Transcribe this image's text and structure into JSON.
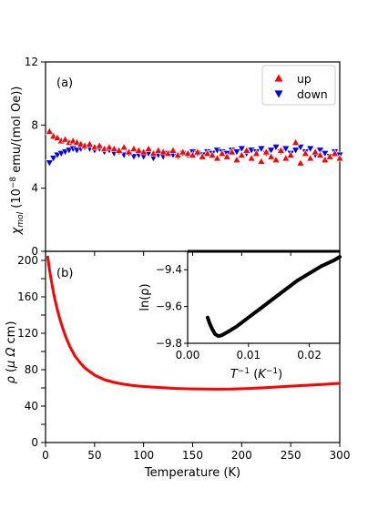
{
  "chart_data": [
    {
      "id": "a",
      "type": "scatter",
      "panel_label": "(a)",
      "ylabel": "χ_mol (10^-8 emu/(mol Oe))",
      "ylabel_parts": {
        "chi": "χ",
        "sub": "mol",
        "open": " (10",
        "sup": "−8",
        "rest": " emu/(mol Oe))"
      },
      "xlim": [
        0,
        300
      ],
      "ylim": [
        0,
        12
      ],
      "yticks": [
        0,
        4,
        8,
        12
      ],
      "xticks": [
        0,
        50,
        100,
        150,
        200,
        250,
        300
      ],
      "show_xticklabels": false,
      "legend": {
        "position": "top-right",
        "entries": [
          "up",
          "down"
        ]
      },
      "series": [
        {
          "name": "up",
          "color": "#ff0000",
          "marker": "triangle-up",
          "x": [
            4,
            8,
            12,
            16,
            20,
            24,
            28,
            32,
            36,
            40,
            45,
            50,
            55,
            60,
            65,
            70,
            75,
            80,
            85,
            90,
            95,
            100,
            105,
            110,
            115,
            120,
            125,
            130,
            135,
            140,
            145,
            150,
            155,
            160,
            165,
            170,
            175,
            180,
            185,
            190,
            195,
            200,
            205,
            210,
            215,
            220,
            225,
            230,
            235,
            240,
            245,
            250,
            255,
            260,
            265,
            270,
            275,
            280,
            285,
            290,
            295,
            300
          ],
          "y": [
            7.6,
            7.3,
            7.2,
            7.0,
            7.1,
            6.9,
            7.0,
            6.9,
            6.8,
            6.7,
            6.8,
            6.6,
            6.7,
            6.5,
            6.6,
            6.5,
            6.4,
            6.6,
            6.3,
            6.5,
            6.4,
            6.3,
            6.5,
            6.2,
            6.4,
            6.3,
            6.2,
            6.4,
            6.1,
            6.3,
            6.2,
            6.1,
            6.3,
            6.0,
            6.2,
            6.1,
            5.9,
            6.2,
            6.0,
            6.3,
            5.8,
            6.1,
            6.4,
            5.9,
            6.2,
            5.7,
            6.3,
            6.0,
            5.8,
            6.4,
            5.9,
            6.1,
            6.9,
            5.6,
            6.2,
            5.9,
            6.3,
            6.1,
            5.8,
            6.0,
            6.2,
            5.9
          ]
        },
        {
          "name": "down",
          "color": "#0000ff",
          "marker": "triangle-down",
          "x": [
            4,
            8,
            12,
            16,
            20,
            24,
            28,
            32,
            36,
            40,
            45,
            50,
            55,
            60,
            65,
            70,
            75,
            80,
            85,
            90,
            95,
            100,
            105,
            110,
            115,
            120,
            125,
            130,
            135,
            140,
            145,
            150,
            155,
            160,
            165,
            170,
            175,
            180,
            185,
            190,
            195,
            200,
            205,
            210,
            215,
            220,
            225,
            230,
            235,
            240,
            245,
            250,
            255,
            260,
            265,
            270,
            275,
            280,
            285,
            290,
            295,
            300
          ],
          "y": [
            5.6,
            5.9,
            6.1,
            6.2,
            6.3,
            6.4,
            6.5,
            6.4,
            6.5,
            6.6,
            6.5,
            6.4,
            6.5,
            6.3,
            6.4,
            6.2,
            6.3,
            6.1,
            6.2,
            6.0,
            6.1,
            6.0,
            6.2,
            5.9,
            6.1,
            6.0,
            6.2,
            6.1,
            6.0,
            6.2,
            6.1,
            6.3,
            6.2,
            6.1,
            6.3,
            6.2,
            6.4,
            6.3,
            6.2,
            6.4,
            6.3,
            6.5,
            6.2,
            6.4,
            6.3,
            6.5,
            6.2,
            6.4,
            6.6,
            6.3,
            6.5,
            6.2,
            6.4,
            6.6,
            6.3,
            6.5,
            6.1,
            6.4,
            6.2,
            6.0,
            6.3,
            6.1
          ]
        }
      ]
    },
    {
      "id": "b",
      "type": "line",
      "panel_label": "(b)",
      "ylabel": "ρ (μΩ cm)",
      "xlabel": "Temperature (K)",
      "xlim": [
        0,
        300
      ],
      "ylim": [
        0,
        210
      ],
      "yticks": [
        0,
        20,
        40,
        60,
        80,
        100,
        120,
        140,
        160,
        180,
        200
      ],
      "yticklabels": [
        "0",
        "",
        "40",
        "",
        "80",
        "",
        "120",
        "",
        "160",
        "",
        "200"
      ],
      "xticks": [
        0,
        50,
        100,
        150,
        200,
        250,
        300
      ],
      "series": [
        {
          "color": "#ff0000",
          "x": [
            2,
            4,
            6,
            8,
            10,
            12,
            15,
            18,
            21,
            25,
            30,
            35,
            40,
            45,
            50,
            60,
            70,
            80,
            90,
            100,
            115,
            130,
            145,
            160,
            175,
            190,
            205,
            220,
            240,
            260,
            280,
            300
          ],
          "y": [
            205,
            190,
            177,
            165,
            155,
            146,
            134,
            124,
            115,
            105,
            95,
            88,
            82,
            78,
            74,
            69,
            66,
            64,
            62.5,
            61.5,
            60.5,
            59.5,
            59,
            58.7,
            58.6,
            58.7,
            59.2,
            60,
            61.3,
            62.5,
            63.6,
            65
          ]
        }
      ],
      "inset": {
        "type": "line",
        "xlabel": "T^-1 (K^-1)",
        "xlabel_parts": {
          "T": "T",
          "tsup": "−1",
          "mid": " (",
          "K": "K",
          "ksup": "−1",
          "end": ")"
        },
        "ylabel": "ln(ρ)",
        "xlim": [
          0.0,
          0.025
        ],
        "ylim": [
          -9.8,
          -9.3
        ],
        "xticks": [
          0.0,
          0.01,
          0.02
        ],
        "xticklabels": [
          "0.00",
          "0.01",
          "0.02"
        ],
        "yticks": [
          -9.8,
          -9.6,
          -9.4
        ],
        "yticklabels": [
          "−9.8",
          "−9.6",
          "−9.4"
        ],
        "series": [
          {
            "color": "#000000",
            "x": [
              0.0033,
              0.0036,
              0.004,
              0.0045,
              0.005,
              0.0053,
              0.0057,
              0.0065,
              0.008,
              0.01,
              0.012,
              0.014,
              0.016,
              0.018,
              0.02,
              0.022,
              0.024,
              0.025
            ],
            "y": [
              -9.66,
              -9.69,
              -9.72,
              -9.75,
              -9.76,
              -9.76,
              -9.755,
              -9.74,
              -9.71,
              -9.66,
              -9.61,
              -9.56,
              -9.51,
              -9.46,
              -9.42,
              -9.38,
              -9.35,
              -9.33
            ]
          }
        ]
      }
    }
  ]
}
